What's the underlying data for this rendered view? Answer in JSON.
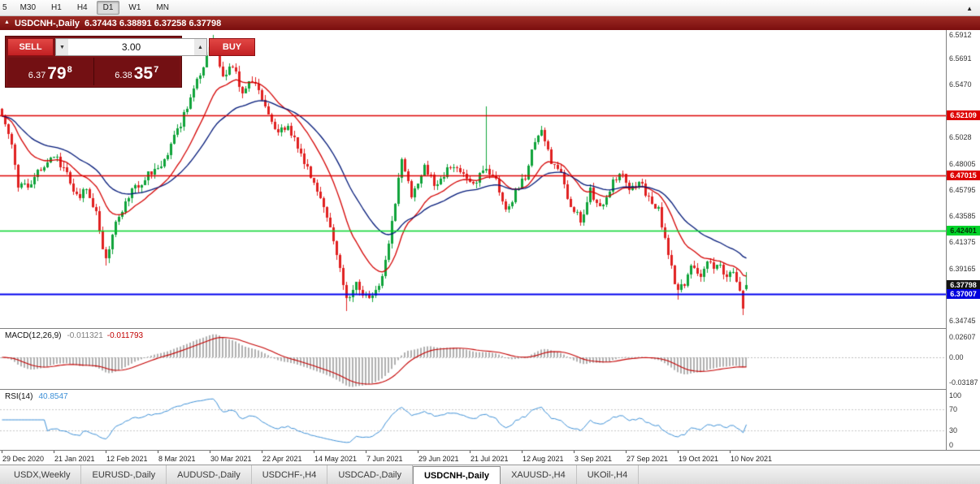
{
  "toolbar": {
    "buttons": [
      {
        "label": "5",
        "active": false
      },
      {
        "label": "M30",
        "active": false
      },
      {
        "label": "H1",
        "active": false
      },
      {
        "label": "H4",
        "active": false
      },
      {
        "label": "D1",
        "active": true
      },
      {
        "label": "W1",
        "active": false
      },
      {
        "label": "MN",
        "active": false
      }
    ]
  },
  "titlebar": {
    "collapse_icon": "▲",
    "title": "USDCNH-,Daily",
    "ohlc": "6.37443 6.38891 6.37258 6.37798"
  },
  "trade_panel": {
    "sell_label": "SELL",
    "buy_label": "BUY",
    "volume": "3.00",
    "sell_price": {
      "prefix": "6.37",
      "big": "79",
      "sup": "8"
    },
    "buy_price": {
      "prefix": "6.38",
      "big": "35",
      "sup": "7"
    }
  },
  "indicators": {
    "macd": {
      "name": "MACD(12,26,9)",
      "value_main": "-0.011321",
      "value_signal": "-0.011793"
    },
    "rsi": {
      "name": "RSI(14)",
      "value": "40.8547"
    }
  },
  "icons": {
    "spin_up": "▲",
    "spin_down": "▼",
    "tab_scroll": "▲"
  },
  "tabs": {
    "items": [
      {
        "label": "USDX,Weekly",
        "active": false
      },
      {
        "label": "EURUSD-,Daily",
        "active": false
      },
      {
        "label": "AUDUSD-,Daily",
        "active": false
      },
      {
        "label": "USDCHF-,H4",
        "active": false
      },
      {
        "label": "USDCAD-,Daily",
        "active": false
      },
      {
        "label": "USDCNH-,Daily",
        "active": true
      },
      {
        "label": "XAUUSD-,H4",
        "active": false
      },
      {
        "label": "UKOil-,H4",
        "active": false
      }
    ]
  },
  "chart_data": {
    "type": "candlestick",
    "symbol": "USDCNH-",
    "timeframe": "Daily",
    "bars": 230,
    "ohlc_current": {
      "open": 6.37443,
      "high": 6.38891,
      "low": 6.37258,
      "close": 6.37798
    },
    "price_axis": {
      "max": 6.5933,
      "min": 6.3413,
      "ticks": [
        "6.5912",
        "6.5691",
        "6.5470",
        "6.5028",
        "6.48005",
        "6.45795",
        "6.43585",
        "6.41375",
        "6.39165",
        "6.34745"
      ]
    },
    "levels": [
      {
        "value": 6.52109,
        "color": "#dd0000",
        "width": 1.4,
        "label": "6.52109",
        "badge_bg": "#dd0000",
        "badge_fg": "#ffffff"
      },
      {
        "value": 6.47015,
        "color": "#dd0000",
        "width": 1.4,
        "label": "6.47015",
        "badge_bg": "#dd0000",
        "badge_fg": "#ffffff"
      },
      {
        "value": 6.42401,
        "color": "#00d42a",
        "width": 1.6,
        "label": "6.42401",
        "badge_bg": "#00d42a",
        "badge_fg": "#063306"
      },
      {
        "value": 6.37007,
        "color": "#0000ee",
        "width": 2.0,
        "label": "6.37007",
        "badge_bg": "#0000dd",
        "badge_fg": "#ffffff"
      }
    ],
    "bid_badge": {
      "label": "6.37798",
      "value": 6.37798,
      "badge_bg": "#141414",
      "badge_fg": "#ffffff"
    },
    "candle_colors": {
      "up": "#0fa33a",
      "down": "#e02020"
    },
    "moving_averages": [
      {
        "period": 16,
        "color": "#d40000"
      },
      {
        "period": 34,
        "color": "#001878"
      }
    ],
    "close_anchors": [
      [
        0,
        6.518
      ],
      [
        3,
        6.497
      ],
      [
        5,
        6.463
      ],
      [
        8,
        6.459
      ],
      [
        12,
        6.477
      ],
      [
        16,
        6.487
      ],
      [
        20,
        6.47
      ],
      [
        23,
        6.452
      ],
      [
        26,
        6.459
      ],
      [
        29,
        6.437
      ],
      [
        32,
        6.399
      ],
      [
        35,
        6.428
      ],
      [
        40,
        6.456
      ],
      [
        45,
        6.471
      ],
      [
        50,
        6.482
      ],
      [
        54,
        6.509
      ],
      [
        58,
        6.534
      ],
      [
        61,
        6.557
      ],
      [
        65,
        6.584
      ],
      [
        68,
        6.552
      ],
      [
        71,
        6.564
      ],
      [
        74,
        6.54
      ],
      [
        77,
        6.551
      ],
      [
        81,
        6.528
      ],
      [
        85,
        6.506
      ],
      [
        88,
        6.513
      ],
      [
        92,
        6.489
      ],
      [
        95,
        6.468
      ],
      [
        98,
        6.448
      ],
      [
        101,
        6.428
      ],
      [
        104,
        6.394
      ],
      [
        106,
        6.364
      ],
      [
        109,
        6.377
      ],
      [
        113,
        6.367
      ],
      [
        116,
        6.376
      ],
      [
        119,
        6.41
      ],
      [
        123,
        6.487
      ],
      [
        126,
        6.452
      ],
      [
        130,
        6.476
      ],
      [
        134,
        6.461
      ],
      [
        138,
        6.48
      ],
      [
        142,
        6.47
      ],
      [
        145,
        6.462
      ],
      [
        148,
        6.478
      ],
      [
        152,
        6.468
      ],
      [
        155,
        6.44
      ],
      [
        158,
        6.455
      ],
      [
        161,
        6.47
      ],
      [
        164,
        6.5
      ],
      [
        166,
        6.508
      ],
      [
        169,
        6.48
      ],
      [
        172,
        6.47
      ],
      [
        175,
        6.445
      ],
      [
        178,
        6.432
      ],
      [
        181,
        6.458
      ],
      [
        184,
        6.442
      ],
      [
        187,
        6.46
      ],
      [
        190,
        6.473
      ],
      [
        193,
        6.458
      ],
      [
        196,
        6.465
      ],
      [
        199,
        6.452
      ],
      [
        202,
        6.44
      ],
      [
        204,
        6.42
      ],
      [
        206,
        6.392
      ],
      [
        208,
        6.371
      ],
      [
        210,
        6.38
      ],
      [
        212,
        6.393
      ],
      [
        215,
        6.387
      ],
      [
        217,
        6.398
      ],
      [
        219,
        6.389
      ],
      [
        221,
        6.396
      ],
      [
        223,
        6.383
      ],
      [
        225,
        6.39
      ],
      [
        227,
        6.371
      ],
      [
        228,
        6.361
      ],
      [
        229,
        6.378
      ]
    ],
    "wick_spikes": [
      {
        "i": 32,
        "low": 6.3945
      },
      {
        "i": 65,
        "high": 6.5895
      },
      {
        "i": 106,
        "low": 6.356
      },
      {
        "i": 149,
        "high": 6.529
      },
      {
        "i": 208,
        "low": 6.365
      },
      {
        "i": 228,
        "low": 6.3525
      }
    ],
    "macd_panel": {
      "scale_labels": [
        {
          "text": "0.02607",
          "value": 0.02607
        },
        {
          "text": "0.00",
          "value": 0
        },
        {
          "text": "-0.03187",
          "value": -0.03187
        }
      ],
      "range": [
        -0.04,
        0.036
      ],
      "fast": 12,
      "slow": 26,
      "signal": 9,
      "hist_color": "#b0b0b0",
      "signal_color": "#c40000"
    },
    "rsi_panel": {
      "scale_labels": [
        {
          "text": "100",
          "value": 100
        },
        {
          "text": "70",
          "value": 70
        },
        {
          "text": "30",
          "value": 30
        },
        {
          "text": "0",
          "value": 0
        }
      ],
      "range": [
        -8,
        108
      ],
      "period": 14,
      "levels": [
        70,
        30
      ],
      "line_color": "#3c8fd6"
    },
    "time_axis": {
      "labels": [
        "29 Dec 2020",
        "21 Jan 2021",
        "12 Feb 2021",
        "8 Mar 2021",
        "30 Mar 2021",
        "22 Apr 2021",
        "14 May 2021",
        "7 Jun 2021",
        "29 Jun 2021",
        "21 Jul 2021",
        "12 Aug 2021",
        "3 Sep 2021",
        "27 Sep 2021",
        "19 Oct 2021",
        "10 Nov 2021"
      ],
      "bars_per_label": 16
    }
  }
}
